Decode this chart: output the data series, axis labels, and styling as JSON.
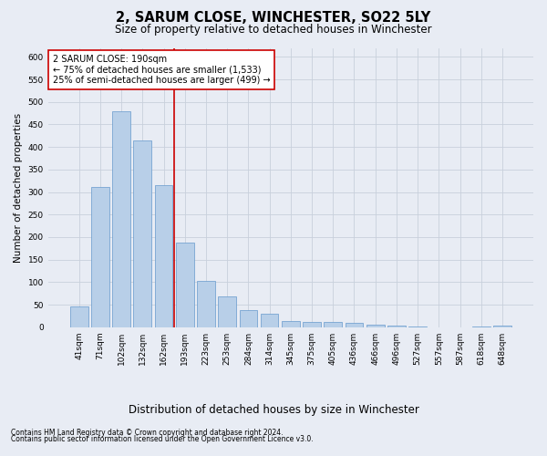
{
  "title": "2, SARUM CLOSE, WINCHESTER, SO22 5LY",
  "subtitle": "Size of property relative to detached houses in Winchester",
  "xlabel": "Distribution of detached houses by size in Winchester",
  "ylabel": "Number of detached properties",
  "categories": [
    "41sqm",
    "71sqm",
    "102sqm",
    "132sqm",
    "162sqm",
    "193sqm",
    "223sqm",
    "253sqm",
    "284sqm",
    "314sqm",
    "345sqm",
    "375sqm",
    "405sqm",
    "436sqm",
    "466sqm",
    "496sqm",
    "527sqm",
    "557sqm",
    "587sqm",
    "618sqm",
    "648sqm"
  ],
  "values": [
    46,
    312,
    480,
    415,
    315,
    188,
    103,
    69,
    37,
    29,
    13,
    11,
    12,
    10,
    6,
    4,
    1,
    0,
    0,
    1,
    4
  ],
  "bar_color": "#b8cfe8",
  "bar_edge_color": "#6699cc",
  "vline_index": 4.5,
  "vline_color": "#cc0000",
  "annotation_line1": "2 SARUM CLOSE: 190sqm",
  "annotation_line2": "← 75% of detached houses are smaller (1,533)",
  "annotation_line3": "25% of semi-detached houses are larger (499) →",
  "annotation_box_facecolor": "#ffffff",
  "annotation_box_edgecolor": "#cc0000",
  "ylim_max": 620,
  "yticks": [
    0,
    50,
    100,
    150,
    200,
    250,
    300,
    350,
    400,
    450,
    500,
    550,
    600
  ],
  "grid_color": "#c8d0dc",
  "bg_color": "#e8ecf4",
  "footer1": "Contains HM Land Registry data © Crown copyright and database right 2024.",
  "footer2": "Contains public sector information licensed under the Open Government Licence v3.0.",
  "title_fontsize": 10.5,
  "subtitle_fontsize": 8.5,
  "ylabel_fontsize": 7.5,
  "xlabel_fontsize": 8.5,
  "tick_fontsize": 6.5,
  "annotation_fontsize": 7,
  "footer_fontsize": 5.5
}
